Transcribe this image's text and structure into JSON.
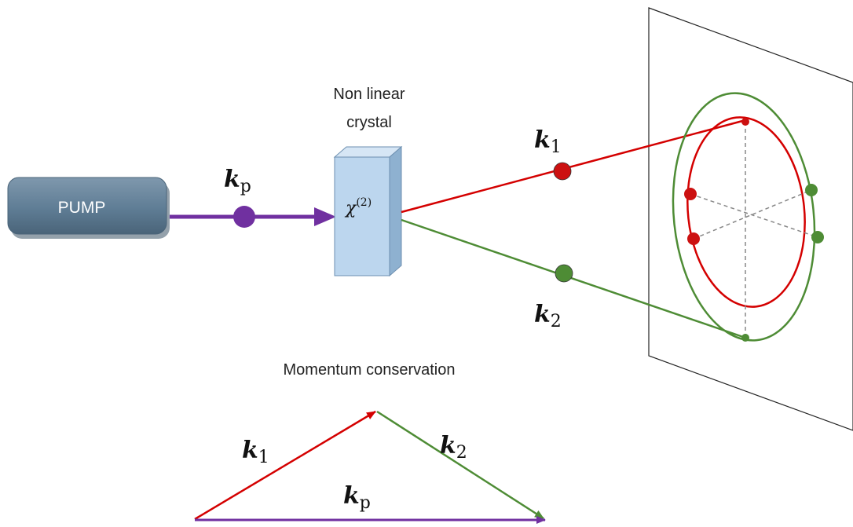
{
  "pump": {
    "label": "PUMP",
    "fill": "#5f7d95"
  },
  "crystal": {
    "title_line1": "Non linear",
    "title_line2": "crystal",
    "chi_symbol": "χ",
    "chi_superscript": "(2)",
    "fill": "#bcd6ee"
  },
  "beams": {
    "pump": {
      "k": "k",
      "sub": "p",
      "color": "#7030a0"
    },
    "signal": {
      "k": "k",
      "sub": "1",
      "color": "#d40000"
    },
    "idler": {
      "k": "k",
      "sub": "2",
      "color": "#4e8c35"
    }
  },
  "momentum": {
    "title": "Momentum conservation",
    "k1": {
      "k": "k",
      "sub": "1"
    },
    "k2": {
      "k": "k",
      "sub": "2"
    },
    "kp": {
      "k": "k",
      "sub": "p"
    }
  }
}
